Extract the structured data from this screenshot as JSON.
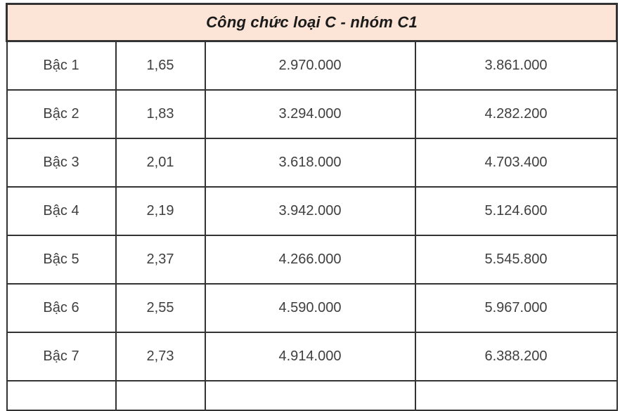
{
  "page": {
    "background": "#ffffff",
    "border_color": "#333333",
    "header_bg": "#fce4d6",
    "text_color": "#3f3f3f"
  },
  "table": {
    "title": "Công chức loại C - nhóm C1",
    "rows": [
      {
        "grade": "Bậc 1",
        "coefficient": "1,65",
        "salary_1": "2.970.000",
        "salary_2": "3.861.000"
      },
      {
        "grade": "Bậc 2",
        "coefficient": "1,83",
        "salary_1": "3.294.000",
        "salary_2": "4.282.200"
      },
      {
        "grade": "Bậc 3",
        "coefficient": "2,01",
        "salary_1": "3.618.000",
        "salary_2": "4.703.400"
      },
      {
        "grade": "Bậc 4",
        "coefficient": "2,19",
        "salary_1": "3.942.000",
        "salary_2": "5.124.600"
      },
      {
        "grade": "Bậc 5",
        "coefficient": "2,37",
        "salary_1": "4.266.000",
        "salary_2": "5.545.800"
      },
      {
        "grade": "Bậc 6",
        "coefficient": "2,55",
        "salary_1": "4.590.000",
        "salary_2": "5.967.000"
      },
      {
        "grade": "Bậc 7",
        "coefficient": "2,73",
        "salary_1": "4.914.000",
        "salary_2": "6.388.200"
      }
    ]
  },
  "chart_data": {
    "type": "table",
    "title": "Công chức loại C - nhóm C1",
    "categories": [
      "Bậc 1",
      "Bậc 2",
      "Bậc 3",
      "Bậc 4",
      "Bậc 5",
      "Bậc 6",
      "Bậc 7"
    ],
    "series": [
      {
        "name": "coefficient",
        "values": [
          1.65,
          1.83,
          2.01,
          2.19,
          2.37,
          2.55,
          2.73
        ]
      },
      {
        "name": "salary_1",
        "values": [
          2970000,
          3294000,
          3618000,
          3942000,
          4266000,
          4590000,
          4914000
        ]
      },
      {
        "name": "salary_2",
        "values": [
          3861000,
          4282200,
          4703400,
          5124600,
          5545800,
          5967000,
          6388200
        ]
      }
    ]
  }
}
